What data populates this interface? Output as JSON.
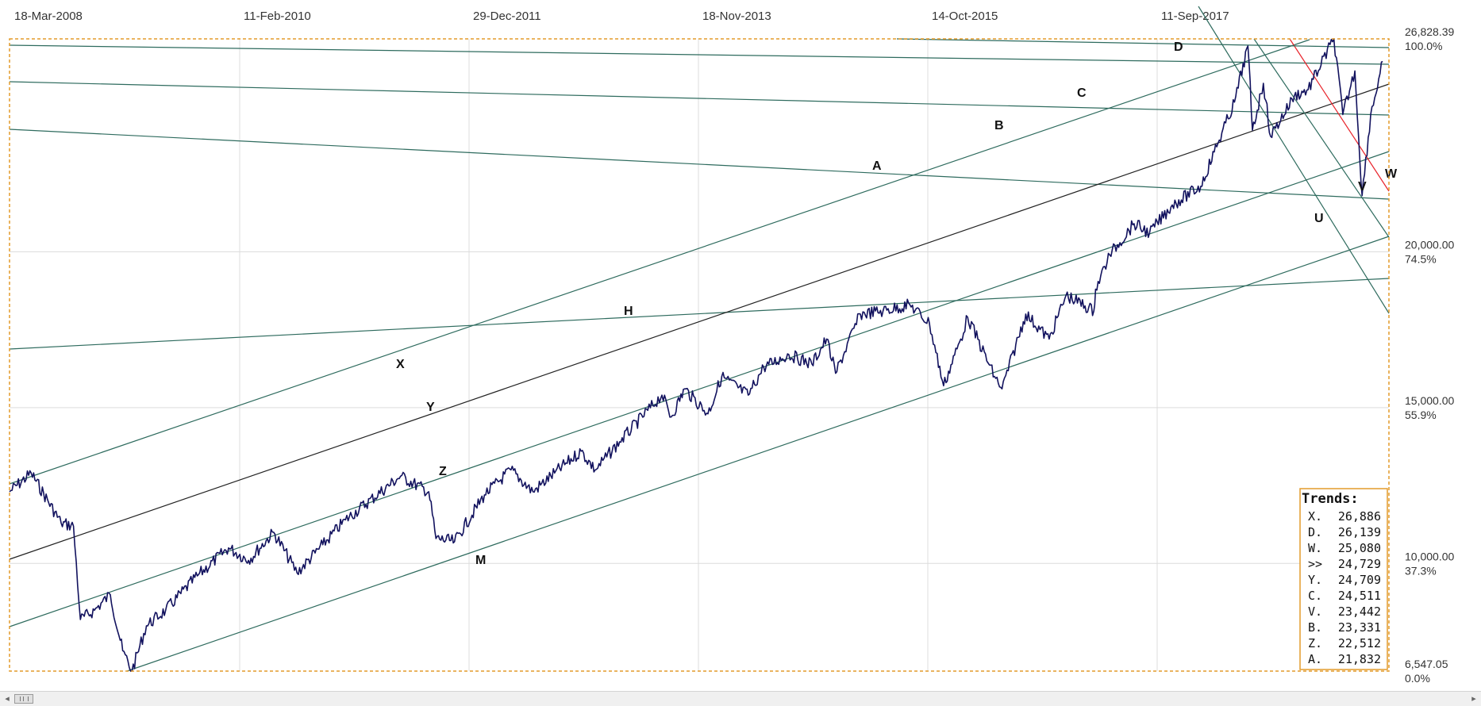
{
  "chart_data": {
    "type": "line",
    "title": "",
    "xlabel": "",
    "ylabel": "",
    "x_tick_labels": [
      "18-Mar-2008",
      "11-Feb-2010",
      "29-Dec-2011",
      "18-Nov-2013",
      "14-Oct-2015",
      "11-Sep-2017"
    ],
    "y_ticks": [
      {
        "value": "26,828.39",
        "percent": "100.0%"
      },
      {
        "value": "20,000.00",
        "percent": "74.5%"
      },
      {
        "value": "15,000.00",
        "percent": "55.9%"
      },
      {
        "value": "10,000.00",
        "percent": "37.3%"
      },
      {
        "value": "6,547.05",
        "percent": "0.0%"
      }
    ],
    "ylim": [
      6547.05,
      26828.39
    ],
    "grid": true,
    "colors": {
      "price": "#12125e",
      "channel": "#2e6b5e",
      "black_line": "#222222",
      "red_line": "#e8232a",
      "frame": "#e39b2b"
    },
    "series": [
      {
        "x": [
          "2008-03-18",
          "2008-05-20",
          "2008-08-15",
          "2008-09-20",
          "2008-10-10",
          "2008-11-20",
          "2009-01-05",
          "2009-02-10",
          "2009-03-09",
          "2009-04-20",
          "2009-06-15",
          "2009-09-15",
          "2009-12-15",
          "2010-02-11",
          "2010-04-25",
          "2010-07-02",
          "2010-09-15",
          "2010-11-20",
          "2011-04-29",
          "2011-07-20",
          "2011-08-10",
          "2011-10-03",
          "2011-12-29",
          "2012-03-15",
          "2012-05-18",
          "2012-07-20",
          "2012-10-05",
          "2012-11-15",
          "2013-01-25",
          "2013-05-28",
          "2013-06-24",
          "2013-08-02",
          "2013-10-09",
          "2013-11-18",
          "2014-02-03",
          "2014-03-20",
          "2014-06-01",
          "2014-08-07",
          "2014-09-19",
          "2014-10-15",
          "2014-12-26",
          "2015-03-02",
          "2015-05-19",
          "2015-07-15",
          "2015-08-25",
          "2015-10-14",
          "2015-11-03",
          "2016-01-20",
          "2016-02-11",
          "2016-04-20",
          "2016-06-27",
          "2016-08-15",
          "2016-11-04",
          "2016-11-09",
          "2016-12-20",
          "2017-03-01",
          "2017-04-15",
          "2017-06-20",
          "2017-09-11",
          "2017-10-20",
          "2017-12-18",
          "2018-01-26",
          "2018-02-08",
          "2018-03-12",
          "2018-04-02",
          "2018-06-10",
          "2018-07-20",
          "2018-10-03",
          "2018-10-29",
          "2018-12-03",
          "2018-12-24",
          "2019-01-18",
          "2019-02-22"
        ],
        "values": [
          12300,
          12900,
          11300,
          11200,
          8200,
          8500,
          9000,
          7200,
          6547,
          8000,
          8500,
          9600,
          10500,
          10100,
          11000,
          9700,
          10600,
          11400,
          12800,
          12300,
          10800,
          10700,
          12200,
          13000,
          12300,
          12900,
          13600,
          13000,
          13900,
          15400,
          14700,
          15600,
          14800,
          16000,
          15400,
          16300,
          16700,
          16400,
          17200,
          16100,
          18000,
          18100,
          18300,
          17700,
          15700,
          17200,
          17900,
          16000,
          15600,
          18000,
          17200,
          18600,
          18100,
          18800,
          19900,
          20900,
          20600,
          21500,
          22100,
          23200,
          24800,
          26600,
          23900,
          25400,
          23700,
          25000,
          25200,
          26828,
          24400,
          25800,
          21800,
          24400,
          26100
        ]
      }
    ],
    "trend_lines": [
      {
        "label": "A"
      },
      {
        "label": "B"
      },
      {
        "label": "C"
      },
      {
        "label": "D"
      },
      {
        "label": "H"
      },
      {
        "label": "X"
      },
      {
        "label": "Y"
      },
      {
        "label": "Z"
      },
      {
        "label": "M"
      },
      {
        "label": "U"
      },
      {
        "label": "V"
      },
      {
        "label": "W"
      }
    ],
    "trends_box": {
      "title": "Trends:",
      "rows": [
        {
          "label": "X.",
          "value": "26,886",
          "color": "#111111"
        },
        {
          "label": "D.",
          "value": "26,139",
          "color": "#111111"
        },
        {
          "label": "W.",
          "value": "25,080",
          "color": "#e8232a"
        },
        {
          "label": ">>",
          "value": "24,729",
          "color": "#111111"
        },
        {
          "label": "Y.",
          "value": "24,709",
          "color": "#111111"
        },
        {
          "label": "C.",
          "value": "24,511",
          "color": "#111111"
        },
        {
          "label": "V.",
          "value": "23,442",
          "color": "#111111"
        },
        {
          "label": "B.",
          "value": "23,331",
          "color": "#111111"
        },
        {
          "label": "Z.",
          "value": "22,512",
          "color": "#111111"
        },
        {
          "label": "A.",
          "value": "21,832",
          "color": "#111111"
        }
      ]
    }
  },
  "scrollbar": {
    "left_arrow": "◂",
    "right_arrow": "▸"
  }
}
